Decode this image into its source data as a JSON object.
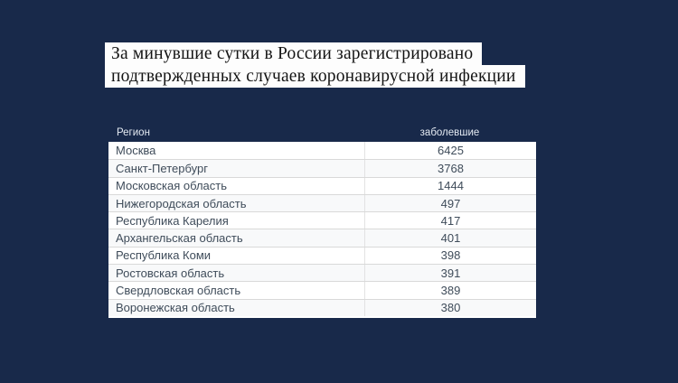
{
  "background_color": "#18294a",
  "title_bar_color": "#fdfdfd",
  "title": {
    "line1": "За минувшие сутки в России зарегистрировано",
    "line2": "подтвержденных случаев коронавирусной инфекции"
  },
  "table": {
    "headers": {
      "region": "Регион",
      "cases": "заболевшие"
    },
    "rows": [
      {
        "region": "Москва",
        "cases": "6425"
      },
      {
        "region": "Санкт-Петербург",
        "cases": "3768"
      },
      {
        "region": "Московская область",
        "cases": "1444"
      },
      {
        "region": "Нижегородская область",
        "cases": "497"
      },
      {
        "region": "Республика Карелия",
        "cases": "417"
      },
      {
        "region": "Архангельская область",
        "cases": "401"
      },
      {
        "region": "Республика Коми",
        "cases": "398"
      },
      {
        "region": "Ростовская область",
        "cases": "391"
      },
      {
        "region": "Свердловская область",
        "cases": "389"
      },
      {
        "region": "Воронежская область",
        "cases": "380"
      }
    ]
  },
  "chart_data": {
    "type": "table",
    "title": "За минувшие сутки в России зарегистрировано подтвержденных случаев коронавирусной инфекции",
    "columns": [
      "Регион",
      "заболевшие"
    ],
    "rows": [
      [
        "Москва",
        6425
      ],
      [
        "Санкт-Петербург",
        3768
      ],
      [
        "Московская область",
        1444
      ],
      [
        "Нижегородская область",
        497
      ],
      [
        "Республика Карелия",
        417
      ],
      [
        "Архангельская область",
        401
      ],
      [
        "Республика Коми",
        398
      ],
      [
        "Ростовская область",
        391
      ],
      [
        "Свердловская область",
        389
      ],
      [
        "Воронежская область",
        380
      ]
    ]
  }
}
